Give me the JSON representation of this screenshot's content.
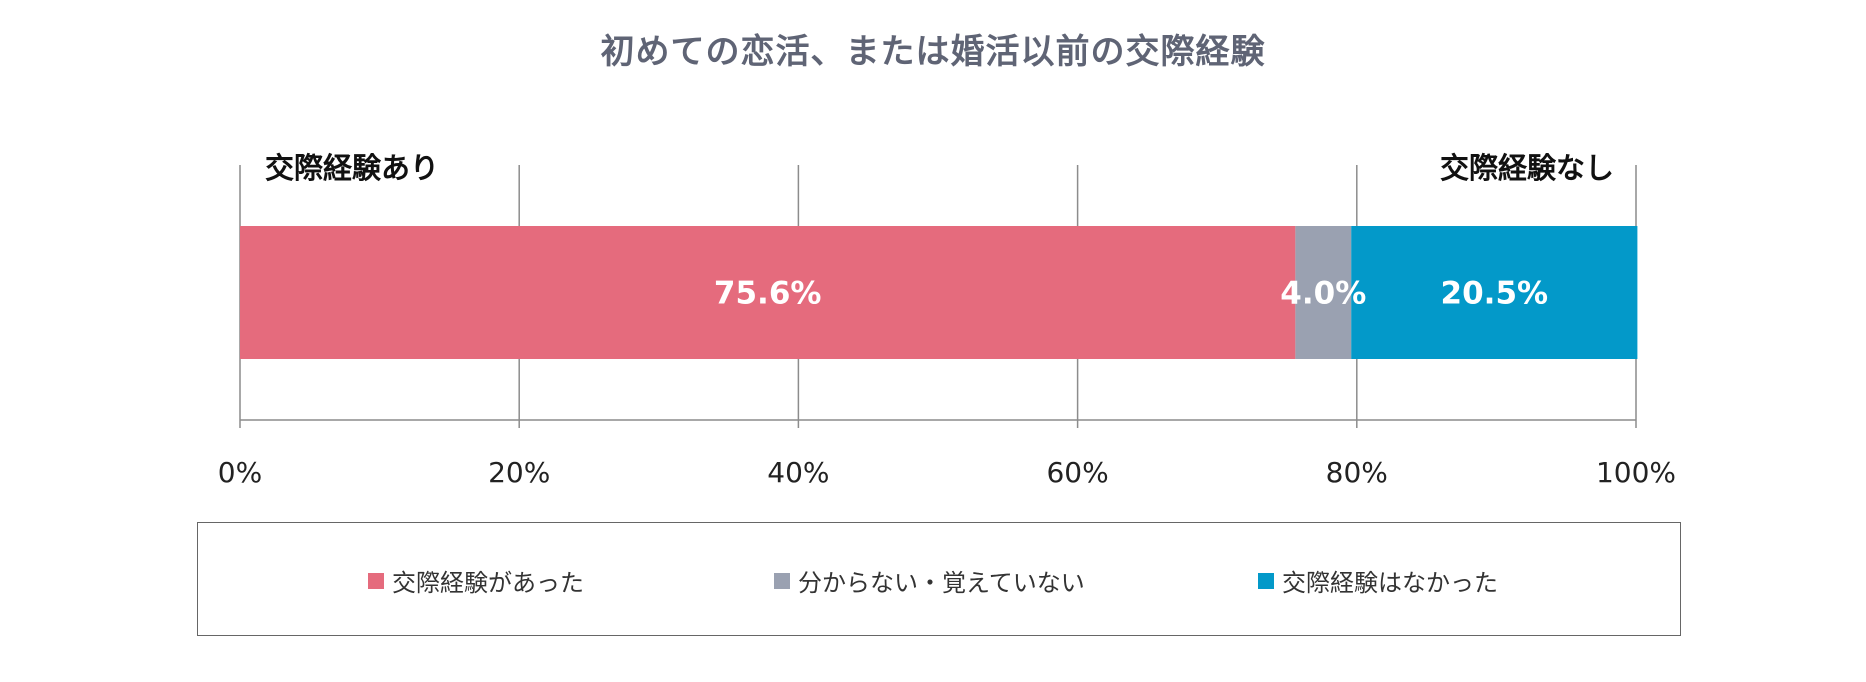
{
  "chart_data": {
    "type": "bar",
    "orientation": "horizontal",
    "stacked": true,
    "title": "初めての恋活、または婚活以前の交際経験",
    "categories": [
      ""
    ],
    "series": [
      {
        "name": "交際経験があった",
        "values": [
          75.6
        ],
        "label": "75.6%",
        "color": "#e56b7d"
      },
      {
        "name": "分からない・覚えていない",
        "values": [
          4.0
        ],
        "label": "4.0%",
        "color": "#9aa1b1"
      },
      {
        "name": "交際経験はなかった",
        "values": [
          20.5
        ],
        "label": "20.5%",
        "color": "#0399c9"
      }
    ],
    "xlim": [
      0,
      100
    ],
    "x_ticks": [
      0,
      20,
      40,
      60,
      80,
      100
    ],
    "x_tick_labels": [
      "0%",
      "20%",
      "40%",
      "60%",
      "80%",
      "100%"
    ],
    "annotations": {
      "left": "交際経験あり",
      "right": "交際経験なし"
    },
    "grid": true,
    "legend_position": "bottom"
  }
}
